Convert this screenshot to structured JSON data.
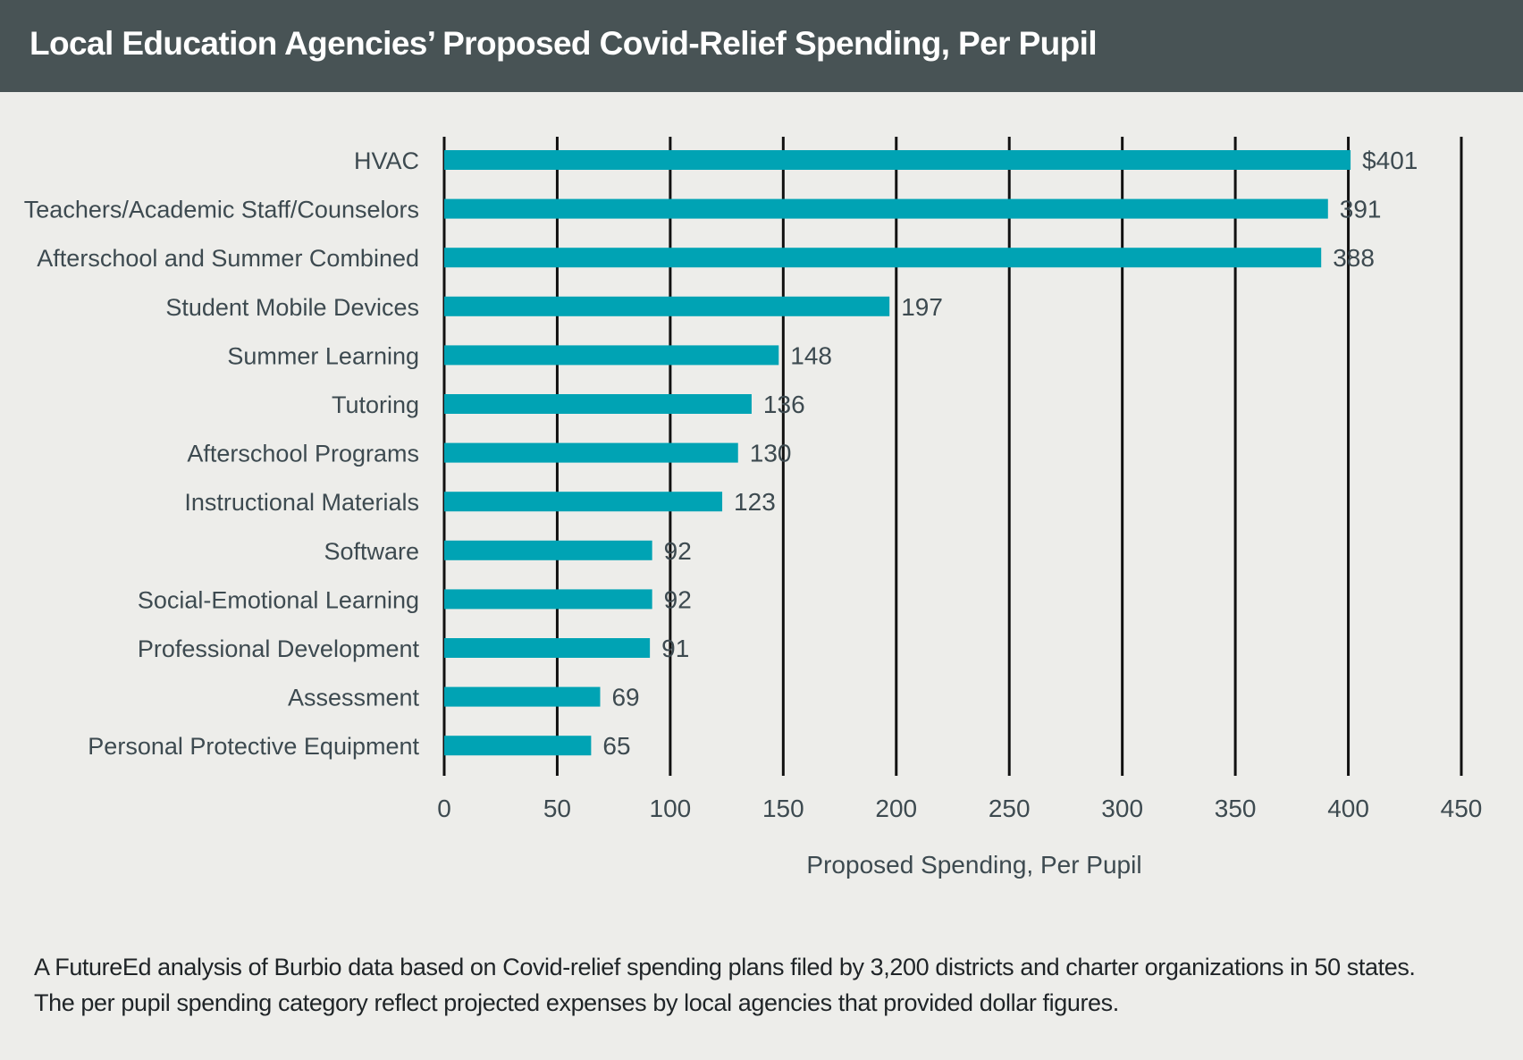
{
  "header": {
    "title": "Local Education Agencies’ Proposed Covid-Relief Spending, Per Pupil"
  },
  "chart_data": {
    "type": "bar",
    "orientation": "horizontal",
    "title": "Local Education Agencies’ Proposed Covid-Relief Spending, Per Pupil",
    "xlabel": "Proposed Spending, Per Pupil",
    "ylabel": "",
    "xlim": [
      0,
      450
    ],
    "xticks": [
      0,
      50,
      100,
      150,
      200,
      250,
      300,
      350,
      400,
      450
    ],
    "grid": true,
    "legend": "none",
    "bar_color": "#00a3b4",
    "grid_color": "#111111",
    "categories": [
      "HVAC",
      "Teachers/Academic Staff/Counselors",
      "Afterschool and Summer Combined",
      "Student Mobile Devices",
      "Summer Learning",
      "Tutoring",
      "Afterschool Programs",
      "Instructional Materials",
      "Software",
      "Social-Emotional Learning",
      "Professional Development",
      "Assessment",
      "Personal Protective Equipment"
    ],
    "values": [
      401,
      391,
      388,
      197,
      148,
      136,
      130,
      123,
      92,
      92,
      91,
      69,
      65
    ],
    "value_labels": [
      "$401",
      "391",
      "388",
      "197",
      "148",
      "136",
      "130",
      "123",
      "92",
      "92",
      "91",
      "69",
      "65"
    ]
  },
  "footnote": {
    "line1": "A FutureEd analysis of Burbio data based on Covid-relief spending plans filed by 3,200 districts and charter organizations in 50 states.",
    "line2": "The per pupil spending category reflect projected expenses by local agencies that provided dollar figures."
  }
}
